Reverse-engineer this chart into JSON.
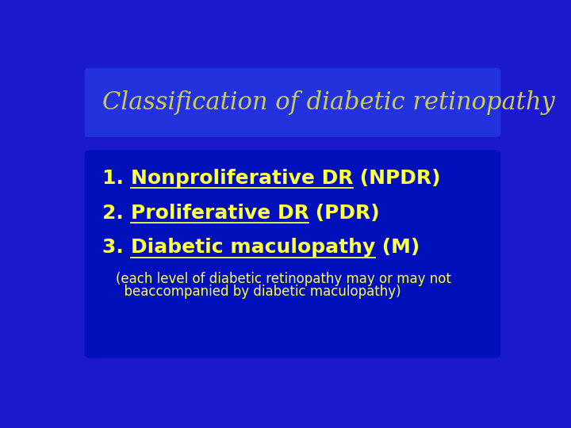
{
  "bg_color": "#1a1acc",
  "title_box_color": "#2233dd",
  "content_box_color": "#0011bb",
  "title_text": "Classification of diabetic retinopathy",
  "title_color": "#cccc55",
  "title_fontsize": 22,
  "yellow_color": "#ffff44",
  "item_fontsize": 18,
  "note_fontsize": 12,
  "note_text1": "(each level of diabetic retinopathy may or may not",
  "note_text2": "  beaccompanied by diabetic maculopathy)"
}
